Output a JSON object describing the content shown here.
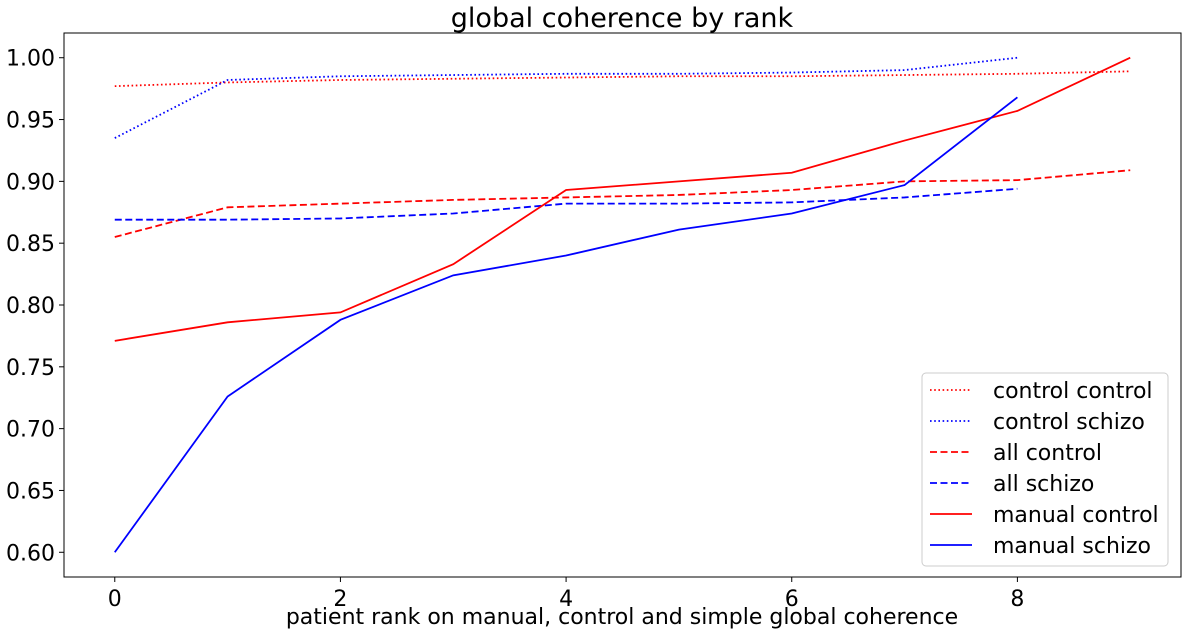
{
  "chart_data": {
    "type": "line",
    "title": "global coherence by rank",
    "xlabel": "patient rank on manual, control and simple global coherence",
    "ylabel": "",
    "xlim": [
      -0.45,
      9.45
    ],
    "ylim": [
      0.58,
      1.02
    ],
    "xticks": [
      0,
      2,
      4,
      6,
      8
    ],
    "yticks": [
      0.6,
      0.65,
      0.7,
      0.75,
      0.8,
      0.85,
      0.9,
      0.95,
      1.0
    ],
    "grid": false,
    "legend_position": "lower-right",
    "series": [
      {
        "name": "control control",
        "color": "#ff0000",
        "dash": "dotted",
        "x": [
          0,
          1,
          2,
          3,
          4,
          5,
          6,
          7,
          8,
          9
        ],
        "values": [
          0.977,
          0.98,
          0.982,
          0.983,
          0.984,
          0.985,
          0.985,
          0.986,
          0.987,
          0.989
        ]
      },
      {
        "name": "control schizo",
        "color": "#0000ff",
        "dash": "dotted",
        "x": [
          0,
          1,
          2,
          3,
          4,
          5,
          6,
          7,
          8
        ],
        "values": [
          0.935,
          0.982,
          0.985,
          0.986,
          0.987,
          0.987,
          0.988,
          0.99,
          1.0
        ]
      },
      {
        "name": "all control",
        "color": "#ff0000",
        "dash": "dashed",
        "x": [
          0,
          1,
          2,
          3,
          4,
          5,
          6,
          7,
          8,
          9
        ],
        "values": [
          0.855,
          0.879,
          0.882,
          0.885,
          0.887,
          0.889,
          0.893,
          0.9,
          0.901,
          0.909
        ]
      },
      {
        "name": "all schizo",
        "color": "#0000ff",
        "dash": "dashed",
        "x": [
          0,
          1,
          2,
          3,
          4,
          5,
          6,
          7,
          8
        ],
        "values": [
          0.869,
          0.869,
          0.87,
          0.874,
          0.882,
          0.882,
          0.883,
          0.887,
          0.894
        ]
      },
      {
        "name": "manual control",
        "color": "#ff0000",
        "dash": "solid",
        "x": [
          0,
          1,
          2,
          3,
          4,
          5,
          6,
          7,
          8,
          9
        ],
        "values": [
          0.771,
          0.786,
          0.794,
          0.833,
          0.893,
          0.9,
          0.907,
          0.933,
          0.957,
          1.0
        ]
      },
      {
        "name": "manual schizo",
        "color": "#0000ff",
        "dash": "solid",
        "x": [
          0,
          1,
          2,
          3,
          4,
          5,
          6,
          7,
          8
        ],
        "values": [
          0.6,
          0.726,
          0.788,
          0.824,
          0.84,
          0.861,
          0.874,
          0.897,
          0.968
        ]
      }
    ]
  }
}
